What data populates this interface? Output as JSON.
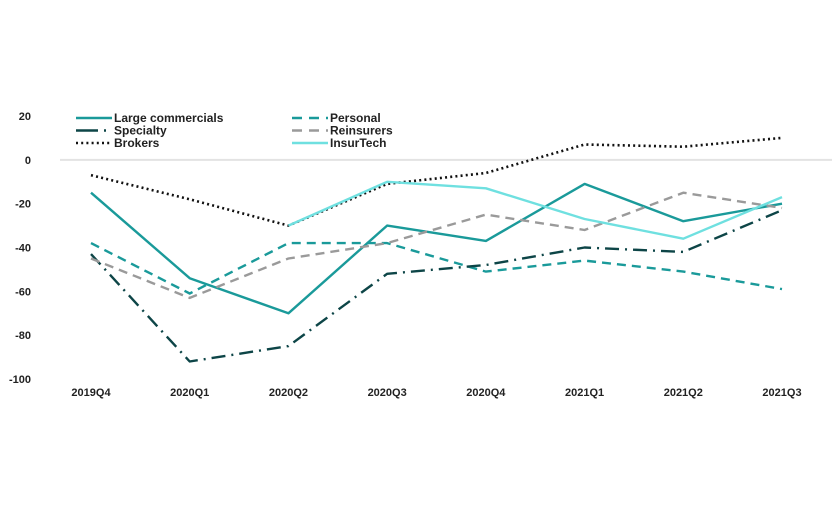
{
  "chart_data": {
    "type": "line",
    "title": "",
    "xlabel": "",
    "ylabel": "",
    "categories": [
      "2019Q4",
      "2020Q1",
      "2020Q2",
      "2020Q3",
      "2020Q4",
      "2021Q1",
      "2021Q2",
      "2021Q3"
    ],
    "ylim": [
      -100,
      20
    ],
    "yticks": [
      20,
      0,
      -20,
      -40,
      -60,
      -80,
      -100
    ],
    "grid": "zero-line only",
    "legend_position": "top-left",
    "series": [
      {
        "name": "Large commercials",
        "color": "#1a9a9a",
        "style": "solid",
        "values": [
          -15,
          -54,
          -70,
          -30,
          -37,
          -11,
          -28,
          -20
        ]
      },
      {
        "name": "Personal",
        "color": "#1a9a9a",
        "style": "dashed",
        "values": [
          -38,
          -61,
          -38,
          -38,
          -51,
          -46,
          -51,
          -59
        ]
      },
      {
        "name": "Specialty",
        "color": "#0d4547",
        "style": "dash-dot",
        "values": [
          -43,
          -92,
          -85,
          -52,
          -48,
          -40,
          -42,
          -23
        ]
      },
      {
        "name": "Reinsurers",
        "color": "#9a9a9a",
        "style": "dashed",
        "values": [
          -45,
          -63,
          -45,
          -38,
          -25,
          -32,
          -15,
          -22
        ]
      },
      {
        "name": "Brokers",
        "color": "#111111",
        "style": "dotted",
        "values": [
          -7,
          -18,
          -30,
          -11,
          -6,
          7,
          6,
          10
        ]
      },
      {
        "name": "InsurTech",
        "color": "#6fe0e0",
        "style": "solid",
        "values": [
          null,
          null,
          -30,
          -10,
          -13,
          -27,
          -36,
          -17
        ]
      }
    ]
  }
}
